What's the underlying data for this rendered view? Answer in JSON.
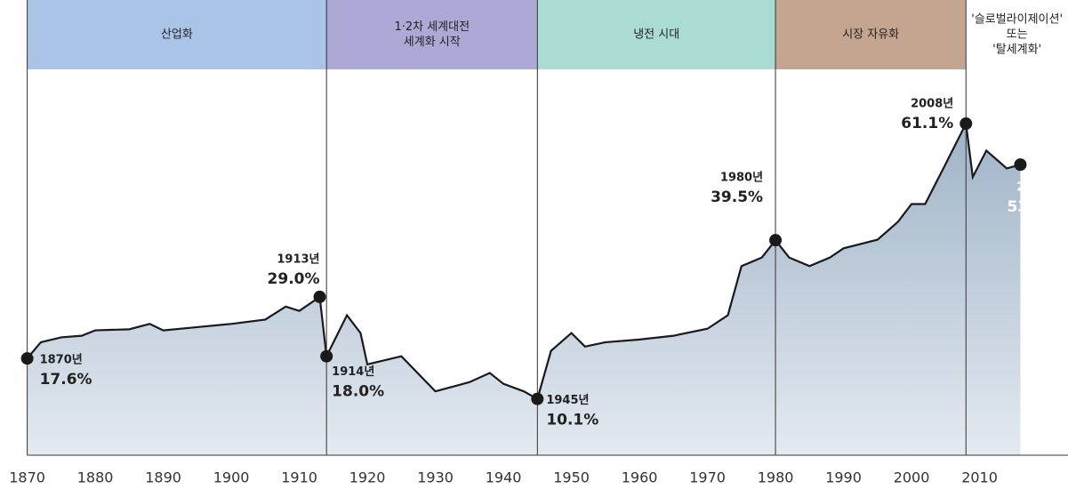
{
  "chart_data": {
    "type": "line",
    "xlim": [
      1866,
      2023
    ],
    "ylim": [
      0,
      84
    ],
    "xticks": [
      1870,
      1880,
      1890,
      1900,
      1910,
      1920,
      1930,
      1940,
      1950,
      1960,
      1970,
      1980,
      1990,
      2000,
      2010
    ],
    "eras": [
      {
        "lines": [
          "산업화"
        ],
        "start": 1870,
        "color": "#aac4e8"
      },
      {
        "lines": [
          "1·2차 세계대전",
          "세계화 시작"
        ],
        "start": 1914,
        "color": "#aca9d6"
      },
      {
        "lines": [
          "냉전 시대"
        ],
        "start": 1945,
        "color": "#aadcd3"
      },
      {
        "lines": [
          "시장 자유화"
        ],
        "start": 1980,
        "color": "#c4a58f"
      },
      {
        "lines": [
          "'슬로벌라이제이션'",
          "또는",
          "'탈세계화'"
        ],
        "start": 2008,
        "color": "#ffffff"
      }
    ],
    "series": [
      {
        "color": "#1a1a1a",
        "x": [
          1870,
          1872,
          1875,
          1878,
          1880,
          1885,
          1888,
          1890,
          1895,
          1900,
          1905,
          1908,
          1910,
          1913,
          1914,
          1917,
          1919,
          1920,
          1925,
          1930,
          1935,
          1938,
          1940,
          1943,
          1945,
          1947,
          1950,
          1952,
          1955,
          1960,
          1965,
          1970,
          1973,
          1975,
          1978,
          1980,
          1982,
          1985,
          1988,
          1990,
          1995,
          1998,
          2000,
          2002,
          2005,
          2008,
          2009,
          2011,
          2014,
          2016
        ],
        "values": [
          17.6,
          20.6,
          21.5,
          21.8,
          22.8,
          23,
          24,
          22.8,
          23.4,
          24,
          24.8,
          27.2,
          26.4,
          29.0,
          18.0,
          25.6,
          22.3,
          16.5,
          18,
          11.5,
          13.2,
          14.9,
          12.9,
          11.5,
          10.1,
          19,
          22.3,
          19.8,
          20.6,
          21.1,
          21.8,
          23.1,
          25.6,
          34.7,
          36.3,
          39.5,
          36.3,
          34.7,
          36.3,
          38,
          39.6,
          42.9,
          46.2,
          46.2,
          53.6,
          61.1,
          51.2,
          56.1,
          52.8,
          53.5
        ]
      }
    ],
    "annotations": [
      {
        "x": 1870,
        "value": 17.6,
        "label": "1870년",
        "value_label": "17.6%"
      },
      {
        "x": 1913,
        "value": 29.0,
        "label": "1913년",
        "value_label": "29.0%"
      },
      {
        "x": 1914,
        "value": 18.0,
        "label": "1914년",
        "value_label": "18.0%"
      },
      {
        "x": 1945,
        "value": 10.1,
        "label": "1945년",
        "value_label": "10.1%"
      },
      {
        "x": 1980,
        "value": 39.5,
        "label": "1980년",
        "value_label": "39.5%"
      },
      {
        "x": 2008,
        "value": 61.1,
        "label": "2008년",
        "value_label": "61.1%"
      },
      {
        "x": 2016,
        "value": 53.5,
        "label": "2016년",
        "value_label": "53.5%"
      }
    ]
  }
}
